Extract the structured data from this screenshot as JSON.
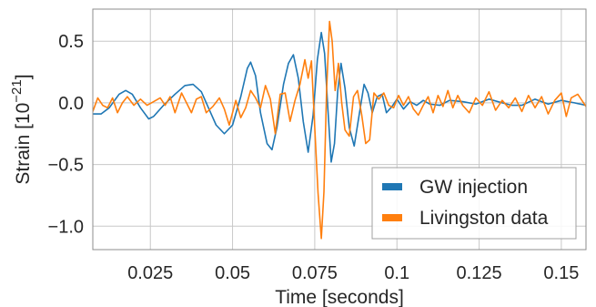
{
  "chart_data": {
    "type": "line",
    "xlabel": "Time [seconds]",
    "ylabel": "Strain [10⁻²¹]",
    "ylabel_base": "Strain [10",
    "ylabel_exp": "−21",
    "ylabel_close": "]",
    "xlim": [
      0.0075,
      0.1575
    ],
    "ylim": [
      -1.19,
      0.76
    ],
    "grid": true,
    "legend_position": "bottom-right",
    "x_ticks": [
      0.025,
      0.05,
      0.075,
      0.1,
      0.125,
      0.15
    ],
    "x_tick_labels": [
      "0.025",
      "0.05",
      "0.075",
      "0.1",
      "0.125",
      "0.15"
    ],
    "y_ticks": [
      0.5,
      0.0,
      -0.5,
      -1.0
    ],
    "y_tick_labels": [
      "0.5",
      "0.0",
      "−0.5",
      "−1.0"
    ],
    "series": [
      {
        "name": "GW injection",
        "color": "#1f77b4",
        "points": [
          [
            0.0075,
            -0.09
          ],
          [
            0.01,
            -0.09
          ],
          [
            0.0125,
            -0.04
          ],
          [
            0.0155,
            0.07
          ],
          [
            0.0175,
            0.1
          ],
          [
            0.0195,
            0.07
          ],
          [
            0.022,
            -0.04
          ],
          [
            0.0245,
            -0.13
          ],
          [
            0.026,
            -0.11
          ],
          [
            0.029,
            -0.02
          ],
          [
            0.0325,
            0.07
          ],
          [
            0.0355,
            0.14
          ],
          [
            0.038,
            0.15
          ],
          [
            0.0405,
            0.09
          ],
          [
            0.0425,
            -0.03
          ],
          [
            0.045,
            -0.18
          ],
          [
            0.0475,
            -0.25
          ],
          [
            0.05,
            -0.18
          ],
          [
            0.0525,
            0.05
          ],
          [
            0.0545,
            0.28
          ],
          [
            0.0555,
            0.33
          ],
          [
            0.057,
            0.22
          ],
          [
            0.0585,
            -0.08
          ],
          [
            0.0605,
            -0.33
          ],
          [
            0.062,
            -0.38
          ],
          [
            0.0635,
            -0.2
          ],
          [
            0.0655,
            0.15
          ],
          [
            0.067,
            0.32
          ],
          [
            0.0685,
            0.39
          ],
          [
            0.07,
            0.2
          ],
          [
            0.0715,
            -0.15
          ],
          [
            0.073,
            -0.4
          ],
          [
            0.0745,
            -0.1
          ],
          [
            0.0758,
            0.35
          ],
          [
            0.077,
            0.57
          ],
          [
            0.078,
            0.4
          ],
          [
            0.079,
            -0.05
          ],
          [
            0.08,
            -0.48
          ],
          [
            0.081,
            -0.33
          ],
          [
            0.082,
            0.1
          ],
          [
            0.083,
            0.32
          ],
          [
            0.0842,
            0.12
          ],
          [
            0.0855,
            -0.2
          ],
          [
            0.087,
            -0.35
          ],
          [
            0.0885,
            -0.1
          ],
          [
            0.09,
            0.15
          ],
          [
            0.0912,
            0.08
          ],
          [
            0.0925,
            -0.08
          ],
          [
            0.094,
            0.05
          ],
          [
            0.0955,
            0.07
          ],
          [
            0.0968,
            -0.08
          ],
          [
            0.0985,
            -0.03
          ],
          [
            0.1,
            0.03
          ],
          [
            0.102,
            -0.05
          ],
          [
            0.104,
            0.01
          ],
          [
            0.106,
            -0.02
          ],
          [
            0.108,
            0.02
          ],
          [
            0.11,
            -0.01
          ],
          [
            0.113,
            -0.02
          ],
          [
            0.116,
            0.02
          ],
          [
            0.12,
            0.01
          ],
          [
            0.124,
            -0.01
          ],
          [
            0.128,
            0.03
          ],
          [
            0.132,
            0.0
          ],
          [
            0.135,
            -0.02
          ],
          [
            0.138,
            -0.02
          ],
          [
            0.142,
            0.03
          ],
          [
            0.146,
            -0.01
          ],
          [
            0.15,
            0.02
          ],
          [
            0.154,
            0.0
          ],
          [
            0.1575,
            -0.02
          ]
        ]
      },
      {
        "name": "Livingston data",
        "color": "#ff7f0e",
        "points": [
          [
            0.0075,
            -0.07
          ],
          [
            0.009,
            0.04
          ],
          [
            0.0105,
            -0.02
          ],
          [
            0.012,
            -0.04
          ],
          [
            0.0135,
            0.04
          ],
          [
            0.015,
            -0.08
          ],
          [
            0.0165,
            0.0
          ],
          [
            0.018,
            0.05
          ],
          [
            0.02,
            -0.02
          ],
          [
            0.022,
            0.03
          ],
          [
            0.024,
            -0.02
          ],
          [
            0.026,
            0.01
          ],
          [
            0.028,
            0.04
          ],
          [
            0.0295,
            -0.02
          ],
          [
            0.031,
            0.05
          ],
          [
            0.0325,
            -0.08
          ],
          [
            0.0345,
            0.08
          ],
          [
            0.036,
            0.0
          ],
          [
            0.0375,
            -0.08
          ],
          [
            0.039,
            0.03
          ],
          [
            0.0405,
            0.05
          ],
          [
            0.042,
            -0.08
          ],
          [
            0.044,
            -0.03
          ],
          [
            0.046,
            0.04
          ],
          [
            0.0475,
            -0.05
          ],
          [
            0.049,
            -0.18
          ],
          [
            0.051,
            0.02
          ],
          [
            0.0525,
            -0.12
          ],
          [
            0.054,
            -0.04
          ],
          [
            0.0555,
            0.1
          ],
          [
            0.057,
            0.04
          ],
          [
            0.0585,
            -0.04
          ],
          [
            0.06,
            0.14
          ],
          [
            0.0615,
            0.03
          ],
          [
            0.063,
            -0.25
          ],
          [
            0.0645,
            0.07
          ],
          [
            0.066,
            0.08
          ],
          [
            0.0675,
            -0.15
          ],
          [
            0.069,
            0.02
          ],
          [
            0.0705,
            0.15
          ],
          [
            0.072,
            0.35
          ],
          [
            0.073,
            0.2
          ],
          [
            0.074,
            0.34
          ],
          [
            0.075,
            -0.2
          ],
          [
            0.076,
            -0.73
          ],
          [
            0.077,
            -1.1
          ],
          [
            0.0778,
            -0.72
          ],
          [
            0.0786,
            0.1
          ],
          [
            0.0795,
            0.66
          ],
          [
            0.0803,
            0.5
          ],
          [
            0.0812,
            0.1
          ],
          [
            0.0822,
            0.32
          ],
          [
            0.0832,
            0.0
          ],
          [
            0.0842,
            -0.22
          ],
          [
            0.0855,
            -0.27
          ],
          [
            0.0868,
            0.05
          ],
          [
            0.088,
            0.1
          ],
          [
            0.0893,
            -0.1
          ],
          [
            0.0905,
            -0.33
          ],
          [
            0.0917,
            -0.3
          ],
          [
            0.093,
            0.08
          ],
          [
            0.0945,
            0.03
          ],
          [
            0.096,
            0.08
          ],
          [
            0.0975,
            -0.02
          ],
          [
            0.099,
            -0.04
          ],
          [
            0.1005,
            0.06
          ],
          [
            0.102,
            -0.02
          ],
          [
            0.1035,
            0.05
          ],
          [
            0.105,
            -0.05
          ],
          [
            0.1065,
            -0.1
          ],
          [
            0.108,
            -0.02
          ],
          [
            0.1095,
            0.05
          ],
          [
            0.111,
            -0.08
          ],
          [
            0.1125,
            0.06
          ],
          [
            0.114,
            -0.03
          ],
          [
            0.1155,
            0.1
          ],
          [
            0.117,
            -0.04
          ],
          [
            0.1185,
            0.06
          ],
          [
            0.12,
            -0.02
          ],
          [
            0.122,
            -0.08
          ],
          [
            0.124,
            0.04
          ],
          [
            0.126,
            -0.02
          ],
          [
            0.128,
            0.09
          ],
          [
            0.13,
            -0.06
          ],
          [
            0.132,
            0.02
          ],
          [
            0.134,
            -0.04
          ],
          [
            0.136,
            0.04
          ],
          [
            0.138,
            -0.07
          ],
          [
            0.14,
            0.06
          ],
          [
            0.142,
            -0.04
          ],
          [
            0.144,
            0.05
          ],
          [
            0.146,
            -0.09
          ],
          [
            0.148,
            0.02
          ],
          [
            0.15,
            0.08
          ],
          [
            0.1515,
            -0.11
          ],
          [
            0.153,
            0.04
          ],
          [
            0.155,
            0.07
          ],
          [
            0.1575,
            -0.03
          ]
        ]
      }
    ]
  }
}
